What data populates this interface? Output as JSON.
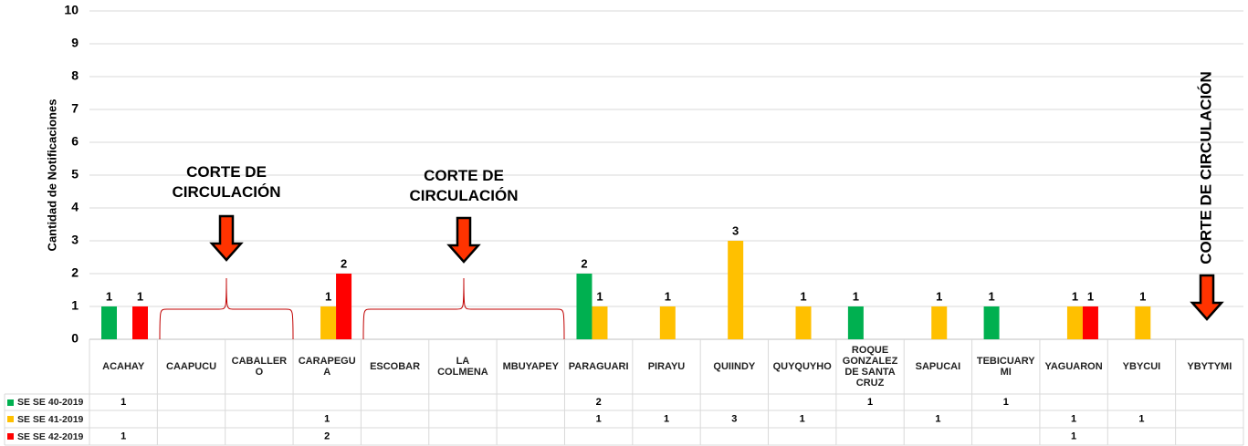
{
  "chart_data": {
    "type": "bar",
    "y_axis_label": "Cantidad de Notificaciones",
    "categories": [
      "ACAHAY",
      "CAAPUCU",
      "CABALLERO",
      "CARAPEGUA",
      "ESCOBAR",
      "LA COLMENA",
      "MBUYAPEY",
      "PARAGUARI",
      "PIRAYU",
      "QUIINDY",
      "QUYQUYHO",
      "ROQUE GONZALEZ DE SANTA CRUZ",
      "SAPUCAI",
      "TEBICUARY MI",
      "YAGUARON",
      "YBYCUI",
      "YBYTYMI"
    ],
    "series": [
      {
        "name": "SE SE 40-2019",
        "color": "#00B050",
        "values": [
          1,
          null,
          null,
          null,
          null,
          null,
          null,
          2,
          null,
          null,
          null,
          1,
          null,
          1,
          null,
          null,
          null
        ]
      },
      {
        "name": "SE SE 41-2019",
        "color": "#FFC000",
        "values": [
          null,
          null,
          null,
          1,
          null,
          null,
          null,
          1,
          1,
          3,
          1,
          null,
          1,
          null,
          1,
          1,
          null
        ]
      },
      {
        "name": "SE SE 42-2019",
        "color": "#FF0000",
        "values": [
          1,
          null,
          null,
          2,
          null,
          null,
          null,
          null,
          null,
          null,
          null,
          null,
          null,
          null,
          1,
          null,
          null
        ]
      }
    ],
    "ylim": [
      0,
      10
    ],
    "yticks": [
      0,
      1,
      2,
      3,
      4,
      5,
      6,
      7,
      8,
      9,
      10
    ],
    "grid": true,
    "annotations": [
      "CORTE DE CIRCULACIÓN",
      "CORTE DE CIRCULACIÓN",
      "CORTE DE CIRCULACIÓN"
    ]
  }
}
